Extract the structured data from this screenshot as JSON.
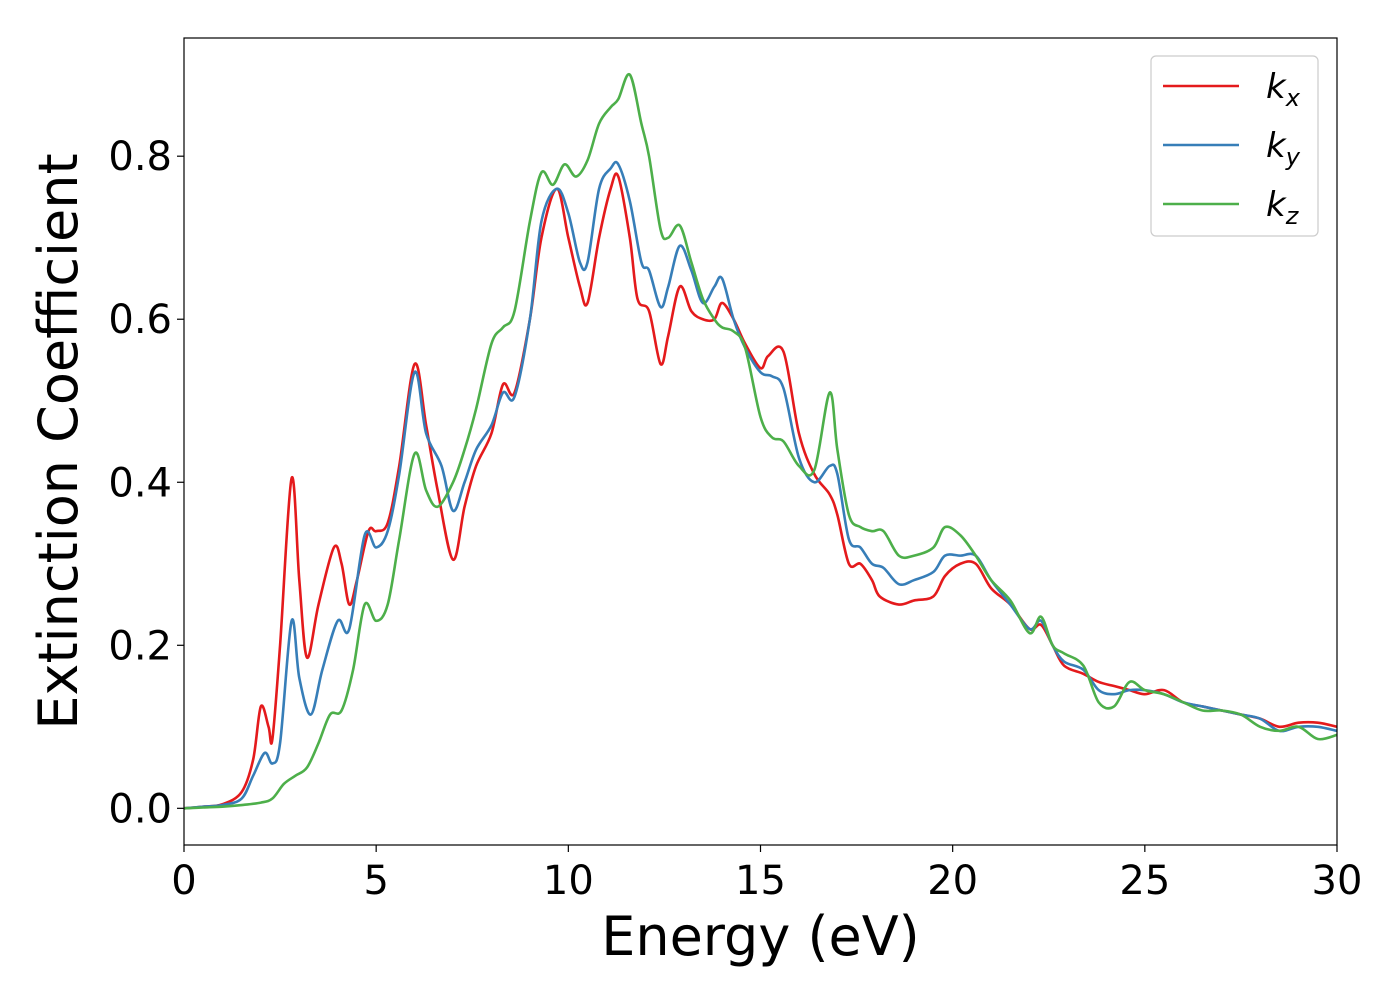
{
  "chart_data": {
    "type": "line",
    "title": "",
    "xlabel": "Energy (eV)",
    "ylabel": "Extinction Coefficient",
    "xlim": [
      0,
      30
    ],
    "ylim": [
      -0.045,
      0.945
    ],
    "xticks": [
      0,
      5,
      10,
      15,
      20,
      25,
      30
    ],
    "xtick_labels": [
      "0",
      "5",
      "10",
      "15",
      "20",
      "25",
      "30"
    ],
    "yticks": [
      0.0,
      0.2,
      0.4,
      0.6,
      0.8
    ],
    "ytick_labels": [
      "0.0",
      "0.2",
      "0.4",
      "0.6",
      "0.8"
    ],
    "grid": false,
    "legend_position": "top-right",
    "series": [
      {
        "name": "k_x",
        "label_base": "k",
        "label_sub": "x",
        "color": "#e41a1c",
        "points": [
          [
            0,
            0
          ],
          [
            0.5,
            0.002
          ],
          [
            1,
            0.005
          ],
          [
            1.5,
            0.02
          ],
          [
            1.8,
            0.06
          ],
          [
            2.0,
            0.125
          ],
          [
            2.2,
            0.1
          ],
          [
            2.3,
            0.085
          ],
          [
            2.5,
            0.2
          ],
          [
            2.8,
            0.405
          ],
          [
            3.0,
            0.28
          ],
          [
            3.2,
            0.185
          ],
          [
            3.5,
            0.25
          ],
          [
            3.9,
            0.32
          ],
          [
            4.1,
            0.3
          ],
          [
            4.3,
            0.25
          ],
          [
            4.5,
            0.28
          ],
          [
            4.8,
            0.34
          ],
          [
            5.0,
            0.34
          ],
          [
            5.3,
            0.35
          ],
          [
            5.6,
            0.42
          ],
          [
            6.0,
            0.545
          ],
          [
            6.3,
            0.47
          ],
          [
            6.6,
            0.39
          ],
          [
            7.0,
            0.305
          ],
          [
            7.3,
            0.37
          ],
          [
            7.6,
            0.42
          ],
          [
            8.0,
            0.46
          ],
          [
            8.3,
            0.52
          ],
          [
            8.6,
            0.51
          ],
          [
            9.0,
            0.6
          ],
          [
            9.3,
            0.7
          ],
          [
            9.7,
            0.76
          ],
          [
            10.0,
            0.7
          ],
          [
            10.3,
            0.64
          ],
          [
            10.5,
            0.62
          ],
          [
            10.8,
            0.7
          ],
          [
            11.1,
            0.76
          ],
          [
            11.3,
            0.775
          ],
          [
            11.6,
            0.7
          ],
          [
            11.8,
            0.625
          ],
          [
            12.1,
            0.61
          ],
          [
            12.4,
            0.545
          ],
          [
            12.6,
            0.58
          ],
          [
            12.9,
            0.64
          ],
          [
            13.2,
            0.61
          ],
          [
            13.5,
            0.6
          ],
          [
            13.8,
            0.6
          ],
          [
            14.0,
            0.62
          ],
          [
            14.3,
            0.6
          ],
          [
            14.6,
            0.57
          ],
          [
            15.0,
            0.54
          ],
          [
            15.2,
            0.555
          ],
          [
            15.6,
            0.56
          ],
          [
            16.0,
            0.46
          ],
          [
            16.4,
            0.41
          ],
          [
            16.8,
            0.385
          ],
          [
            17.0,
            0.36
          ],
          [
            17.3,
            0.3
          ],
          [
            17.6,
            0.3
          ],
          [
            17.9,
            0.28
          ],
          [
            18.1,
            0.26
          ],
          [
            18.6,
            0.25
          ],
          [
            19.0,
            0.255
          ],
          [
            19.5,
            0.26
          ],
          [
            19.8,
            0.285
          ],
          [
            20.2,
            0.3
          ],
          [
            20.6,
            0.3
          ],
          [
            21.0,
            0.27
          ],
          [
            21.5,
            0.25
          ],
          [
            22.0,
            0.22
          ],
          [
            22.3,
            0.225
          ],
          [
            22.6,
            0.2
          ],
          [
            22.9,
            0.175
          ],
          [
            23.4,
            0.165
          ],
          [
            23.8,
            0.155
          ],
          [
            24.2,
            0.15
          ],
          [
            24.6,
            0.145
          ],
          [
            25.0,
            0.14
          ],
          [
            25.5,
            0.145
          ],
          [
            26.0,
            0.13
          ],
          [
            26.5,
            0.125
          ],
          [
            27.0,
            0.12
          ],
          [
            27.5,
            0.115
          ],
          [
            28.0,
            0.11
          ],
          [
            28.5,
            0.1
          ],
          [
            29.0,
            0.105
          ],
          [
            29.5,
            0.105
          ],
          [
            30.0,
            0.1
          ]
        ]
      },
      {
        "name": "k_y",
        "label_base": "k",
        "label_sub": "y",
        "color": "#377eb8",
        "points": [
          [
            0,
            0
          ],
          [
            0.5,
            0.002
          ],
          [
            1,
            0.004
          ],
          [
            1.5,
            0.012
          ],
          [
            1.8,
            0.04
          ],
          [
            2.1,
            0.068
          ],
          [
            2.3,
            0.055
          ],
          [
            2.5,
            0.08
          ],
          [
            2.8,
            0.23
          ],
          [
            3.0,
            0.16
          ],
          [
            3.3,
            0.115
          ],
          [
            3.6,
            0.17
          ],
          [
            4.0,
            0.23
          ],
          [
            4.3,
            0.22
          ],
          [
            4.7,
            0.335
          ],
          [
            5.0,
            0.32
          ],
          [
            5.3,
            0.34
          ],
          [
            5.6,
            0.41
          ],
          [
            6.0,
            0.535
          ],
          [
            6.3,
            0.46
          ],
          [
            6.7,
            0.42
          ],
          [
            7.0,
            0.365
          ],
          [
            7.3,
            0.4
          ],
          [
            7.6,
            0.44
          ],
          [
            8.0,
            0.47
          ],
          [
            8.3,
            0.51
          ],
          [
            8.6,
            0.505
          ],
          [
            9.0,
            0.6
          ],
          [
            9.3,
            0.72
          ],
          [
            9.7,
            0.76
          ],
          [
            10.0,
            0.73
          ],
          [
            10.3,
            0.67
          ],
          [
            10.5,
            0.67
          ],
          [
            10.8,
            0.76
          ],
          [
            11.1,
            0.785
          ],
          [
            11.3,
            0.79
          ],
          [
            11.6,
            0.745
          ],
          [
            11.9,
            0.67
          ],
          [
            12.1,
            0.66
          ],
          [
            12.4,
            0.615
          ],
          [
            12.6,
            0.64
          ],
          [
            12.9,
            0.69
          ],
          [
            13.2,
            0.66
          ],
          [
            13.5,
            0.62
          ],
          [
            13.8,
            0.64
          ],
          [
            14.0,
            0.65
          ],
          [
            14.3,
            0.6
          ],
          [
            14.6,
            0.565
          ],
          [
            15.0,
            0.535
          ],
          [
            15.3,
            0.53
          ],
          [
            15.6,
            0.515
          ],
          [
            16.0,
            0.43
          ],
          [
            16.4,
            0.4
          ],
          [
            16.8,
            0.42
          ],
          [
            17.0,
            0.41
          ],
          [
            17.3,
            0.33
          ],
          [
            17.6,
            0.32
          ],
          [
            17.9,
            0.3
          ],
          [
            18.2,
            0.295
          ],
          [
            18.6,
            0.275
          ],
          [
            19.0,
            0.28
          ],
          [
            19.5,
            0.29
          ],
          [
            19.8,
            0.31
          ],
          [
            20.2,
            0.31
          ],
          [
            20.6,
            0.31
          ],
          [
            21.0,
            0.28
          ],
          [
            21.5,
            0.25
          ],
          [
            22.0,
            0.22
          ],
          [
            22.3,
            0.23
          ],
          [
            22.6,
            0.2
          ],
          [
            22.9,
            0.18
          ],
          [
            23.4,
            0.17
          ],
          [
            23.8,
            0.145
          ],
          [
            24.2,
            0.14
          ],
          [
            24.6,
            0.145
          ],
          [
            25.0,
            0.145
          ],
          [
            25.5,
            0.14
          ],
          [
            26.0,
            0.13
          ],
          [
            26.5,
            0.125
          ],
          [
            27.0,
            0.12
          ],
          [
            27.5,
            0.115
          ],
          [
            28.0,
            0.11
          ],
          [
            28.5,
            0.095
          ],
          [
            29.0,
            0.1
          ],
          [
            29.5,
            0.1
          ],
          [
            30.0,
            0.095
          ]
        ]
      },
      {
        "name": "k_z",
        "label_base": "k",
        "label_sub": "z",
        "color": "#4daf4a",
        "points": [
          [
            0,
            0
          ],
          [
            0.5,
            0.001
          ],
          [
            1,
            0.002
          ],
          [
            1.5,
            0.004
          ],
          [
            2.0,
            0.007
          ],
          [
            2.3,
            0.012
          ],
          [
            2.6,
            0.03
          ],
          [
            2.9,
            0.04
          ],
          [
            3.2,
            0.05
          ],
          [
            3.5,
            0.08
          ],
          [
            3.8,
            0.115
          ],
          [
            4.1,
            0.12
          ],
          [
            4.4,
            0.17
          ],
          [
            4.7,
            0.25
          ],
          [
            5.0,
            0.23
          ],
          [
            5.3,
            0.25
          ],
          [
            5.6,
            0.33
          ],
          [
            6.0,
            0.435
          ],
          [
            6.3,
            0.39
          ],
          [
            6.6,
            0.37
          ],
          [
            7.0,
            0.4
          ],
          [
            7.3,
            0.44
          ],
          [
            7.6,
            0.49
          ],
          [
            8.0,
            0.57
          ],
          [
            8.3,
            0.59
          ],
          [
            8.6,
            0.61
          ],
          [
            9.0,
            0.72
          ],
          [
            9.3,
            0.78
          ],
          [
            9.6,
            0.765
          ],
          [
            9.9,
            0.79
          ],
          [
            10.2,
            0.775
          ],
          [
            10.5,
            0.795
          ],
          [
            10.8,
            0.84
          ],
          [
            11.1,
            0.86
          ],
          [
            11.3,
            0.87
          ],
          [
            11.6,
            0.9
          ],
          [
            11.9,
            0.84
          ],
          [
            12.1,
            0.8
          ],
          [
            12.4,
            0.71
          ],
          [
            12.6,
            0.7
          ],
          [
            12.9,
            0.715
          ],
          [
            13.2,
            0.67
          ],
          [
            13.5,
            0.625
          ],
          [
            13.8,
            0.6
          ],
          [
            14.0,
            0.59
          ],
          [
            14.3,
            0.585
          ],
          [
            14.6,
            0.565
          ],
          [
            15.0,
            0.48
          ],
          [
            15.3,
            0.455
          ],
          [
            15.6,
            0.45
          ],
          [
            16.0,
            0.42
          ],
          [
            16.4,
            0.415
          ],
          [
            16.8,
            0.51
          ],
          [
            17.0,
            0.44
          ],
          [
            17.3,
            0.36
          ],
          [
            17.6,
            0.345
          ],
          [
            17.9,
            0.34
          ],
          [
            18.2,
            0.34
          ],
          [
            18.6,
            0.31
          ],
          [
            19.0,
            0.31
          ],
          [
            19.5,
            0.32
          ],
          [
            19.8,
            0.345
          ],
          [
            20.2,
            0.335
          ],
          [
            20.6,
            0.31
          ],
          [
            21.0,
            0.28
          ],
          [
            21.5,
            0.255
          ],
          [
            22.0,
            0.215
          ],
          [
            22.3,
            0.235
          ],
          [
            22.6,
            0.2
          ],
          [
            22.9,
            0.19
          ],
          [
            23.4,
            0.175
          ],
          [
            23.8,
            0.13
          ],
          [
            24.2,
            0.125
          ],
          [
            24.6,
            0.155
          ],
          [
            25.0,
            0.145
          ],
          [
            25.5,
            0.14
          ],
          [
            26.0,
            0.13
          ],
          [
            26.5,
            0.12
          ],
          [
            27.0,
            0.12
          ],
          [
            27.5,
            0.115
          ],
          [
            28.0,
            0.1
          ],
          [
            28.5,
            0.095
          ],
          [
            29.0,
            0.1
          ],
          [
            29.5,
            0.085
          ],
          [
            30.0,
            0.09
          ]
        ]
      }
    ]
  }
}
